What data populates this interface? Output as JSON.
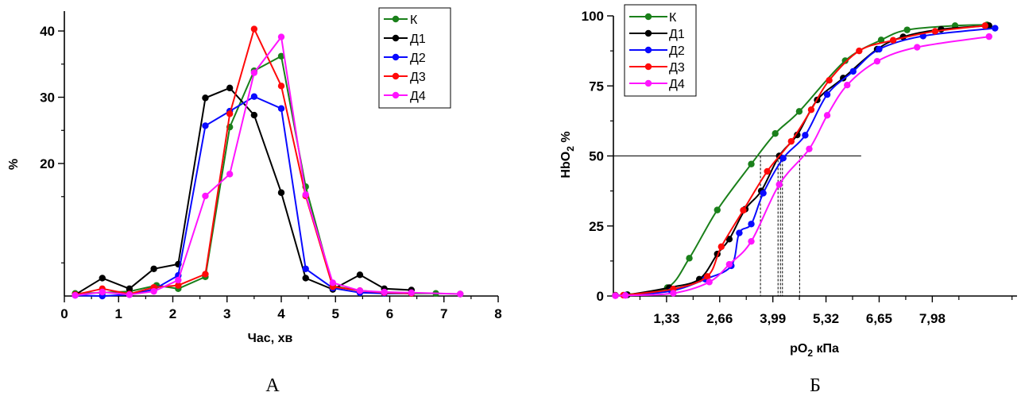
{
  "colors": {
    "K": "#1a801a",
    "D1": "#000000",
    "D2": "#0a0aff",
    "D3": "#ff0a0a",
    "D4": "#ff14ff"
  },
  "chart_data": [
    {
      "panel_label": "А",
      "type": "line",
      "xlabel": "Час, хв",
      "ylabel": "%",
      "xlim": [
        0,
        8
      ],
      "xticks": [
        "0",
        "1",
        "2",
        "3",
        "4",
        "5",
        "6",
        "7",
        "8"
      ],
      "ylim": [
        0,
        43
      ],
      "yticks": [
        "20",
        "30",
        "40"
      ],
      "legend": "top-right",
      "grid": false,
      "series": [
        {
          "name": "К",
          "color_key": "K",
          "points": [
            [
              0.2,
              0.4
            ],
            [
              0.7,
              0.5
            ],
            [
              1.2,
              0.7
            ],
            [
              1.7,
              1.6
            ],
            [
              2.1,
              1.1
            ],
            [
              2.6,
              2.9
            ],
            [
              3.05,
              25.5
            ],
            [
              3.5,
              34.0
            ],
            [
              4.0,
              36.2
            ],
            [
              4.45,
              16.5
            ],
            [
              4.95,
              1.5
            ],
            [
              5.45,
              0.8
            ],
            [
              5.9,
              0.5
            ],
            [
              6.4,
              0.4
            ],
            [
              6.85,
              0.4
            ],
            [
              7.3,
              0.3
            ]
          ]
        },
        {
          "name": "Д1",
          "color_key": "D1",
          "points": [
            [
              0.2,
              0.2
            ],
            [
              0.7,
              2.7
            ],
            [
              1.2,
              1.1
            ],
            [
              1.65,
              4.1
            ],
            [
              2.1,
              4.8
            ],
            [
              2.6,
              29.9
            ],
            [
              3.05,
              31.4
            ],
            [
              3.5,
              27.3
            ],
            [
              4.0,
              15.6
            ],
            [
              4.45,
              2.7
            ],
            [
              4.95,
              1.0
            ],
            [
              5.45,
              3.2
            ],
            [
              5.9,
              1.1
            ],
            [
              6.4,
              0.9
            ]
          ]
        },
        {
          "name": "Д2",
          "color_key": "D2",
          "points": [
            [
              0.2,
              0.1
            ],
            [
              0.7,
              0.0
            ],
            [
              1.2,
              0.2
            ],
            [
              1.65,
              1.0
            ],
            [
              2.1,
              3.1
            ],
            [
              2.6,
              25.7
            ],
            [
              3.05,
              27.9
            ],
            [
              3.5,
              30.1
            ],
            [
              4.0,
              28.3
            ],
            [
              4.45,
              4.1
            ],
            [
              4.95,
              1.2
            ],
            [
              5.45,
              0.5
            ],
            [
              5.9,
              0.4
            ],
            [
              6.4,
              0.4
            ]
          ]
        },
        {
          "name": "Д3",
          "color_key": "D3",
          "points": [
            [
              0.2,
              0.2
            ],
            [
              0.7,
              1.1
            ],
            [
              1.2,
              0.3
            ],
            [
              1.65,
              1.3
            ],
            [
              2.1,
              1.6
            ],
            [
              2.6,
              3.3
            ],
            [
              3.05,
              27.5
            ],
            [
              3.5,
              40.3
            ],
            [
              4.0,
              31.7
            ],
            [
              4.45,
              15.1
            ],
            [
              4.95,
              1.4
            ],
            [
              5.45,
              0.8
            ],
            [
              5.9,
              0.5
            ],
            [
              6.4,
              0.4
            ]
          ]
        },
        {
          "name": "Д4",
          "color_key": "D4",
          "points": [
            [
              0.2,
              0.1
            ],
            [
              0.7,
              0.6
            ],
            [
              1.2,
              0.2
            ],
            [
              1.65,
              0.7
            ],
            [
              2.1,
              2.4
            ],
            [
              2.6,
              15.1
            ],
            [
              3.05,
              18.4
            ],
            [
              3.5,
              33.7
            ],
            [
              4.0,
              39.1
            ],
            [
              4.45,
              15.3
            ],
            [
              4.95,
              2.0
            ],
            [
              5.45,
              0.8
            ],
            [
              5.9,
              0.6
            ],
            [
              6.4,
              0.5
            ],
            [
              7.3,
              0.3
            ]
          ]
        }
      ]
    },
    {
      "panel_label": "Б",
      "type": "line",
      "xlabel": "pO",
      "xlabel_sub": "2",
      "xlabel_tail": " кПа",
      "ylabel": "HbO",
      "ylabel_sub": "2",
      "ylabel_tail": " %",
      "xlim": [
        0.0,
        10.1
      ],
      "xticks": [
        "1,33",
        "2,66",
        "3,99",
        "5,32",
        "6,65",
        "7,98"
      ],
      "xtick_values": [
        1.33,
        2.66,
        3.99,
        5.32,
        6.65,
        7.98
      ],
      "ylim": [
        0,
        100
      ],
      "yticks": [
        "0",
        "25",
        "50",
        "75",
        "100"
      ],
      "legend": "top-left",
      "grid": false,
      "reference_line_y": 50,
      "reference_line_xmax": 6.2,
      "p50_drop_lines_x": [
        3.68,
        4.12,
        4.18,
        4.23,
        4.66
      ],
      "series": [
        {
          "name": "К",
          "color_key": "K",
          "points": [
            [
              0.05,
              0.3
            ],
            [
              0.35,
              0.5
            ],
            [
              1.35,
              3.0
            ],
            [
              1.9,
              13.5
            ],
            [
              2.6,
              30.7
            ],
            [
              3.45,
              47.1
            ],
            [
              4.05,
              58.0
            ],
            [
              4.65,
              65.9
            ],
            [
              5.8,
              84.0
            ],
            [
              6.7,
              91.4
            ],
            [
              7.35,
              95.0
            ],
            [
              8.55,
              96.5
            ],
            [
              9.35,
              96.8
            ]
          ]
        },
        {
          "name": "Д1",
          "color_key": "D1",
          "points": [
            [
              0.05,
              0.2
            ],
            [
              0.35,
              0.4
            ],
            [
              1.4,
              3.0
            ],
            [
              2.15,
              6.0
            ],
            [
              2.6,
              15.0
            ],
            [
              2.9,
              20.3
            ],
            [
              3.3,
              31.0
            ],
            [
              3.7,
              37.5
            ],
            [
              4.15,
              50.0
            ],
            [
              4.6,
              57.5
            ],
            [
              5.1,
              70.0
            ],
            [
              5.75,
              77.8
            ],
            [
              6.6,
              88.1
            ],
            [
              7.25,
              92.5
            ],
            [
              8.2,
              95.2
            ],
            [
              9.4,
              96.5
            ]
          ]
        },
        {
          "name": "Д2",
          "color_key": "D2",
          "points": [
            [
              0.05,
              0.2
            ],
            [
              0.3,
              0.3
            ],
            [
              1.45,
              1.8
            ],
            [
              2.3,
              6.0
            ],
            [
              2.95,
              10.8
            ],
            [
              3.15,
              22.5
            ],
            [
              3.45,
              25.7
            ],
            [
              3.75,
              36.7
            ],
            [
              4.25,
              49.2
            ],
            [
              4.8,
              57.4
            ],
            [
              5.35,
              71.9
            ],
            [
              6.0,
              80.2
            ],
            [
              6.65,
              88.1
            ],
            [
              7.75,
              92.8
            ],
            [
              9.55,
              95.6
            ]
          ]
        },
        {
          "name": "Д3",
          "color_key": "D3",
          "points": [
            [
              0.05,
              0.2
            ],
            [
              0.25,
              0.3
            ],
            [
              1.5,
              2.5
            ],
            [
              2.35,
              7.0
            ],
            [
              2.7,
              17.6
            ],
            [
              3.25,
              30.6
            ],
            [
              3.85,
              44.5
            ],
            [
              4.45,
              55.2
            ],
            [
              4.95,
              66.5
            ],
            [
              5.4,
              77.0
            ],
            [
              6.15,
              87.5
            ],
            [
              7.0,
              91.3
            ],
            [
              8.05,
              94.5
            ],
            [
              9.3,
              96.5
            ]
          ]
        },
        {
          "name": "Д4",
          "color_key": "D4",
          "points": [
            [
              0.05,
              0.1
            ],
            [
              0.3,
              0.2
            ],
            [
              1.5,
              1.0
            ],
            [
              2.4,
              5.0
            ],
            [
              2.9,
              11.3
            ],
            [
              3.45,
              19.5
            ],
            [
              4.15,
              39.8
            ],
            [
              4.9,
              52.5
            ],
            [
              5.35,
              64.5
            ],
            [
              5.85,
              75.3
            ],
            [
              6.6,
              83.8
            ],
            [
              7.6,
              88.8
            ],
            [
              9.4,
              92.6
            ]
          ]
        }
      ]
    }
  ]
}
